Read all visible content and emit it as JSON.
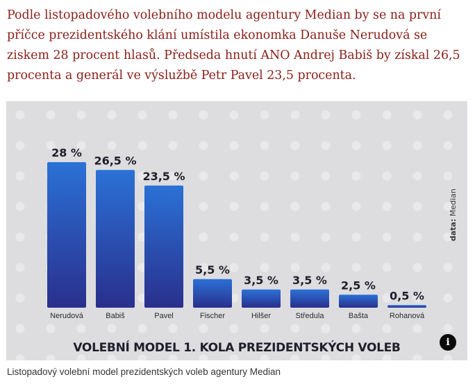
{
  "article": {
    "lead": "Podle listopadového volebního modelu agentury Median by se na první příčce prezidentského klání umístila ekonomka Danuše Nerudová se ziskem 28 procent hlasů. Předseda hnutí ANO Andrej Babiš by získal 26,5 procenta a generál ve výslužbě Petr Pavel 23,5 procenta.",
    "caption": "Listopadový volební model prezidentských voleb agentury Median"
  },
  "figure": {
    "source_prefix": "data:",
    "source_name": "Median",
    "info_glyph": "i",
    "info_icon": "info-icon"
  },
  "chart_data": {
    "type": "bar",
    "title": "VOLEBNÍ MODEL 1. KOLA PREZIDENTSKÝCH VOLEB",
    "categories": [
      "Nerudová",
      "Babiš",
      "Pavel",
      "Fischer",
      "Hilšer",
      "Středula",
      "Bašta",
      "Rohanová"
    ],
    "values": [
      28,
      26.5,
      23.5,
      5.5,
      3.5,
      3.5,
      2.5,
      0.5
    ],
    "value_labels": [
      "28 %",
      "26,5 %",
      "23,5 %",
      "5,5 %",
      "3,5 %",
      "3,5 %",
      "2,5 %",
      "0,5 %"
    ],
    "unit": "%",
    "ylim": [
      0,
      28
    ],
    "grid": false,
    "legend": "none",
    "colors": {
      "bar_top": "#2b71d6",
      "bar_bottom": "#2a2f8c"
    }
  }
}
